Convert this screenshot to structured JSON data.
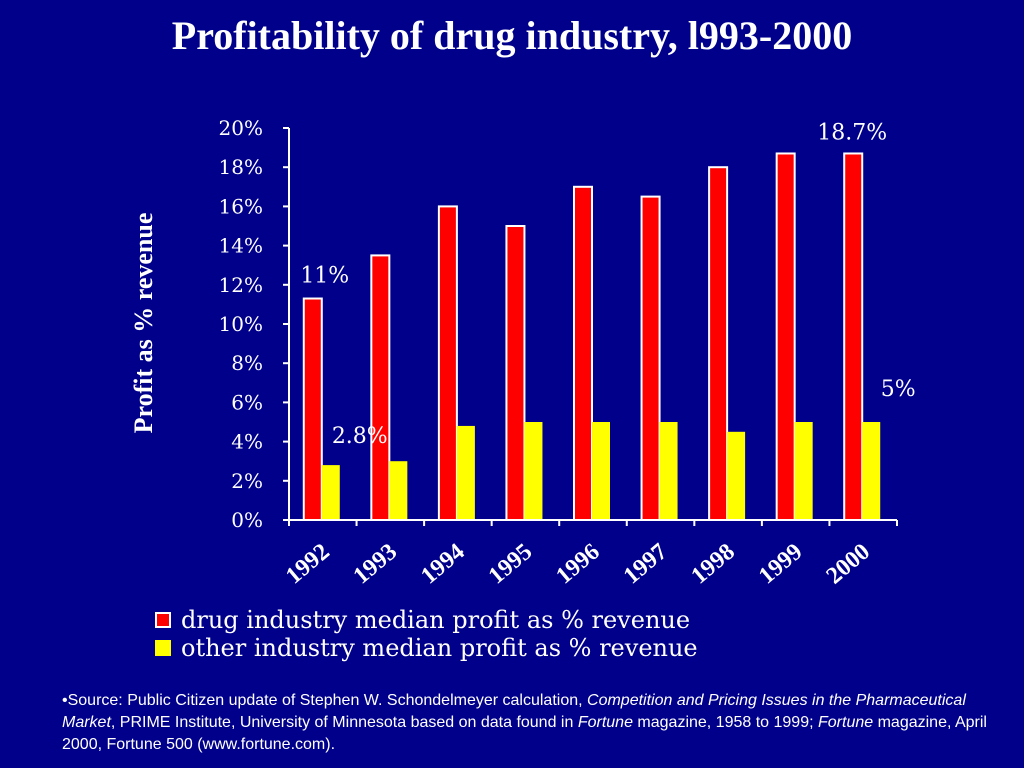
{
  "title": "Profitability of drug industry, l993-2000",
  "chart_data": {
    "type": "bar",
    "categories": [
      "1992",
      "1993",
      "1994",
      "1995",
      "1996",
      "1997",
      "1998",
      "1999",
      "2000"
    ],
    "series": [
      {
        "name": "drug industry median profit as % revenue",
        "color": "#ff0000",
        "values": [
          11.3,
          13.5,
          16.0,
          15.0,
          17.0,
          16.5,
          18.0,
          18.7,
          18.7
        ]
      },
      {
        "name": "other industry median profit as % revenue",
        "color": "#ffff00",
        "values": [
          2.8,
          3.0,
          4.8,
          5.0,
          5.0,
          5.0,
          4.5,
          5.0,
          5.0
        ]
      }
    ],
    "ylabel": "Profit as % revenue",
    "ylim": [
      0,
      20
    ],
    "yticks": [
      "0%",
      "2%",
      "4%",
      "6%",
      "8%",
      "10%",
      "12%",
      "14%",
      "16%",
      "18%",
      "20%"
    ],
    "grid": false,
    "legend": "bottom",
    "annotations": [
      {
        "text": "11%",
        "series": 0,
        "index": 0
      },
      {
        "text": "2.8%",
        "series": 1,
        "index": 0
      },
      {
        "text": "18.7%",
        "series": 0,
        "index": 8
      },
      {
        "text": "5%",
        "series": 1,
        "index": 8
      }
    ]
  },
  "legend_items": [
    "drug industry median profit as % revenue",
    "other industry median profit as % revenue"
  ],
  "source": {
    "p1": "•Source: Public Citizen update of Stephen W. Schondelmeyer calculation, ",
    "i1": "Competition and Pricing Issues in the Pharmaceutical Market",
    "p2": ", PRIME Institute, University of Minnesota based on data found in ",
    "i2": "Fortune",
    "p3": " magazine, 1958 to 1999; ",
    "i3": "Fortune",
    "p4": " magazine, April 2000, Fortune 500 (www.fortune.com)."
  }
}
